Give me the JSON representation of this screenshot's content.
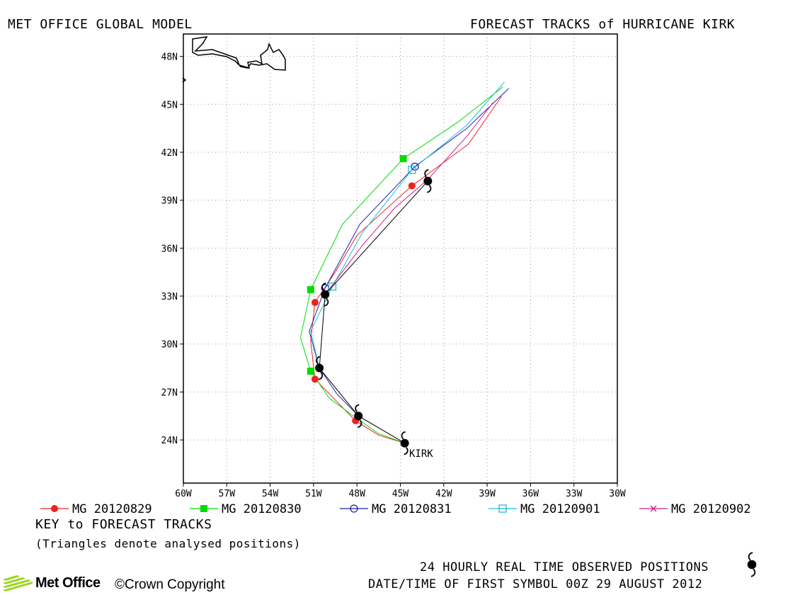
{
  "header": {
    "left_title": "MET OFFICE GLOBAL MODEL",
    "right_title": "FORECAST TRACKS of HURRICANE KIRK"
  },
  "chart_data": {
    "type": "line",
    "x_ticks": [
      "60W",
      "57W",
      "54W",
      "51W",
      "48W",
      "45W",
      "42W",
      "39W",
      "36W",
      "33W",
      "30W"
    ],
    "y_ticks": [
      "24N",
      "27N",
      "30N",
      "33N",
      "36N",
      "39N",
      "42N",
      "45N",
      "48N"
    ],
    "xlim": [
      -60,
      -30
    ],
    "ylim": [
      21.3,
      49.4
    ],
    "grid": true,
    "storm_label": "KIRK",
    "observed": [
      {
        "lon": -44.7,
        "lat": 23.8
      },
      {
        "lon": -47.9,
        "lat": 25.5
      },
      {
        "lon": -50.6,
        "lat": 28.5
      },
      {
        "lon": -50.2,
        "lat": 33.1
      },
      {
        "lon": -43.1,
        "lat": 40.2
      }
    ],
    "series": [
      {
        "name": "MG 20120829",
        "color": "#ee2222",
        "marker": "dot",
        "track": [
          [
            -44.7,
            23.8
          ],
          [
            -46.5,
            24.3
          ],
          [
            -48.1,
            25.2
          ],
          [
            -49.5,
            26.5
          ],
          [
            -50.9,
            27.8
          ],
          [
            -51.2,
            30.2
          ],
          [
            -50.9,
            32.6
          ],
          [
            -49.5,
            34.5
          ],
          [
            -48.0,
            36.8
          ],
          [
            -44.2,
            39.9
          ],
          [
            -40.3,
            42.5
          ],
          [
            -38.0,
            45.5
          ]
        ],
        "markers": [
          [
            -48.1,
            25.2
          ],
          [
            -50.9,
            27.8
          ],
          [
            -50.9,
            32.6
          ],
          [
            -44.2,
            39.9
          ]
        ]
      },
      {
        "name": "MG 20120830",
        "color": "#00dd00",
        "marker": "square",
        "track": [
          [
            -44.7,
            23.8
          ],
          [
            -46.5,
            24.4
          ],
          [
            -48.1,
            25.4
          ],
          [
            -49.9,
            26.6
          ],
          [
            -51.2,
            28.3
          ],
          [
            -51.9,
            30.4
          ],
          [
            -51.2,
            33.4
          ],
          [
            -49.0,
            37.5
          ],
          [
            -44.8,
            41.6
          ],
          [
            -41.0,
            43.9
          ],
          [
            -37.9,
            46.1
          ]
        ],
        "markers": [
          [
            -51.2,
            28.3
          ],
          [
            -51.2,
            33.4
          ],
          [
            -44.8,
            41.6
          ]
        ]
      },
      {
        "name": "MG 20120831",
        "color": "#2222aa",
        "marker": "circle",
        "track": [
          [
            -47.9,
            25.5
          ],
          [
            -49.4,
            26.9
          ],
          [
            -50.6,
            28.5
          ],
          [
            -51.3,
            30.8
          ],
          [
            -50.2,
            33.5
          ],
          [
            -47.8,
            37.5
          ],
          [
            -44.0,
            41.1
          ],
          [
            -40.4,
            43.5
          ],
          [
            -37.5,
            46.0
          ]
        ],
        "markers": [
          [
            -50.2,
            33.5
          ],
          [
            -44.0,
            41.1
          ]
        ]
      },
      {
        "name": "MG 20120901",
        "color": "#22bbdd",
        "marker": "open-square",
        "track": [
          [
            -50.6,
            28.5
          ],
          [
            -51.2,
            30.8
          ],
          [
            -49.7,
            33.6
          ],
          [
            -47.6,
            37.0
          ],
          [
            -44.2,
            40.9
          ],
          [
            -40.4,
            43.7
          ],
          [
            -37.8,
            46.4
          ]
        ],
        "markers": [
          [
            -49.7,
            33.6
          ],
          [
            -44.2,
            40.9
          ]
        ]
      },
      {
        "name": "MG 20120902",
        "color": "#cc2288",
        "marker": "cross",
        "track": [
          [
            -50.2,
            33.1
          ],
          [
            -47.6,
            36.2
          ],
          [
            -45.4,
            38.5
          ],
          [
            -43.1,
            40.3
          ],
          [
            -40.4,
            43.0
          ],
          [
            -38.6,
            45.1
          ]
        ],
        "markers": [
          [
            -43.1,
            40.3
          ]
        ]
      }
    ]
  },
  "key": {
    "title": "KEY to FORECAST TRACKS",
    "note": "(Triangles denote analysed positions)"
  },
  "footer": {
    "observed_label": "24 HOURLY REAL TIME OBSERVED POSITIONS",
    "date_label": "DATE/TIME OF FIRST SYMBOL 00Z 29 AUGUST 2012",
    "logo_text": "Met Office",
    "copyright": "©Crown Copyright"
  },
  "colors": {
    "plot_border": "#000000",
    "grid": "#999999",
    "observed_symbol": "#000000",
    "logo_green": "#9ed421"
  }
}
